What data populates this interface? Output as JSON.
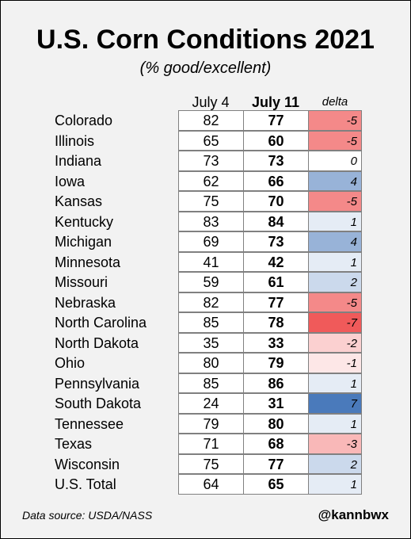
{
  "chart_data": {
    "type": "table",
    "title": "U.S. Corn Conditions 2021",
    "subtitle": "(% good/excellent)",
    "columns": [
      "July 4",
      "July 11",
      "delta"
    ],
    "rows": [
      {
        "state": "Colorado",
        "july4": "82",
        "july11": "77",
        "delta": "-5"
      },
      {
        "state": "Illinois",
        "july4": "65",
        "july11": "60",
        "delta": "-5"
      },
      {
        "state": "Indiana",
        "july4": "73",
        "july11": "73",
        "delta": "0"
      },
      {
        "state": "Iowa",
        "july4": "62",
        "july11": "66",
        "delta": "4"
      },
      {
        "state": "Kansas",
        "july4": "75",
        "july11": "70",
        "delta": "-5"
      },
      {
        "state": "Kentucky",
        "july4": "83",
        "july11": "84",
        "delta": "1"
      },
      {
        "state": "Michigan",
        "july4": "69",
        "july11": "73",
        "delta": "4"
      },
      {
        "state": "Minnesota",
        "july4": "41",
        "july11": "42",
        "delta": "1"
      },
      {
        "state": "Missouri",
        "july4": "59",
        "july11": "61",
        "delta": "2"
      },
      {
        "state": "Nebraska",
        "july4": "82",
        "july11": "77",
        "delta": "-5"
      },
      {
        "state": "North Carolina",
        "july4": "85",
        "july11": "78",
        "delta": "-7"
      },
      {
        "state": "North Dakota",
        "july4": "35",
        "july11": "33",
        "delta": "-2"
      },
      {
        "state": "Ohio",
        "july4": "80",
        "july11": "79",
        "delta": "-1"
      },
      {
        "state": "Pennsylvania",
        "july4": "85",
        "july11": "86",
        "delta": "1"
      },
      {
        "state": "South Dakota",
        "july4": "24",
        "july11": "31",
        "delta": "7"
      },
      {
        "state": "Tennessee",
        "july4": "79",
        "july11": "80",
        "delta": "1"
      },
      {
        "state": "Texas",
        "july4": "71",
        "july11": "68",
        "delta": "-3"
      },
      {
        "state": "Wisconsin",
        "july4": "75",
        "july11": "77",
        "delta": "2"
      },
      {
        "state": "U.S. Total",
        "july4": "64",
        "july11": "65",
        "delta": "1"
      }
    ]
  },
  "colors": {
    "negative_max": "#f05a5a",
    "positive_max": "#4a7abb",
    "neutral": "#ffffff",
    "background": "#f2f2f2"
  },
  "footer": {
    "source": "Data source: USDA/NASS",
    "handle": "@kannbwx"
  }
}
